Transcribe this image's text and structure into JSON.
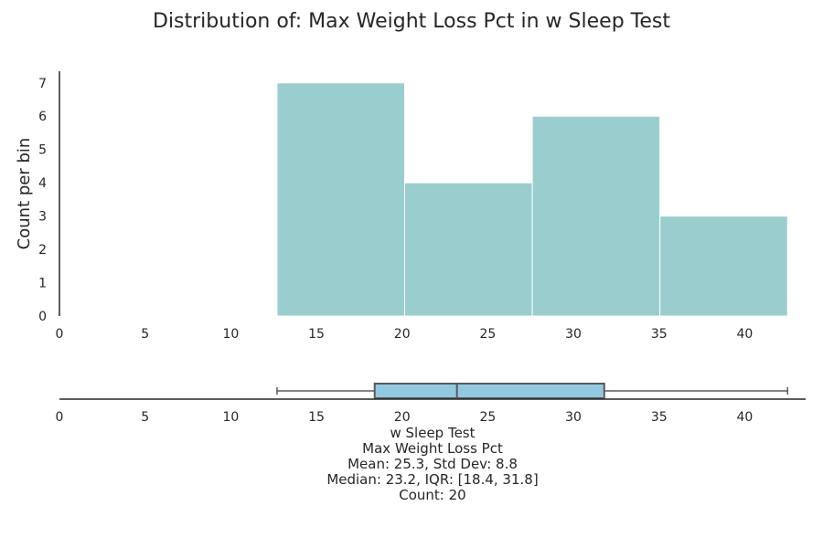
{
  "chart_data": [
    {
      "type": "histogram",
      "title": "Distribution of: Max Weight Loss Pct in w Sleep Test",
      "xlabel": "",
      "ylabel": "Count per bin",
      "xlim": [
        0,
        43.5
      ],
      "ylim": [
        0,
        7.35
      ],
      "x_ticks": [
        0,
        5,
        10,
        15,
        20,
        25,
        30,
        35,
        40
      ],
      "y_ticks": [
        0,
        1,
        2,
        3,
        4,
        5,
        6,
        7
      ],
      "bins": [
        {
          "start": 12.7,
          "end": 20.15,
          "count": 7
        },
        {
          "start": 20.15,
          "end": 27.6,
          "count": 4
        },
        {
          "start": 27.6,
          "end": 35.05,
          "count": 6
        },
        {
          "start": 35.05,
          "end": 42.5,
          "count": 3
        }
      ],
      "bar_color": "#9acdce",
      "grid": false
    },
    {
      "type": "box",
      "xlim": [
        0,
        43.5
      ],
      "x_ticks": [
        0,
        5,
        10,
        15,
        20,
        25,
        30,
        35,
        40
      ],
      "whisker_low": 12.7,
      "q1": 18.4,
      "median": 23.2,
      "q3": 31.8,
      "whisker_high": 42.5,
      "box_color": "#92c9e1"
    }
  ],
  "caption": {
    "line1": "w Sleep Test",
    "line2": "Max Weight Loss Pct",
    "line3": "Mean: 25.3, Std Dev: 8.8",
    "line4": "Median: 23.2, IQR: [18.4, 31.8]",
    "line5": "Count: 20"
  }
}
